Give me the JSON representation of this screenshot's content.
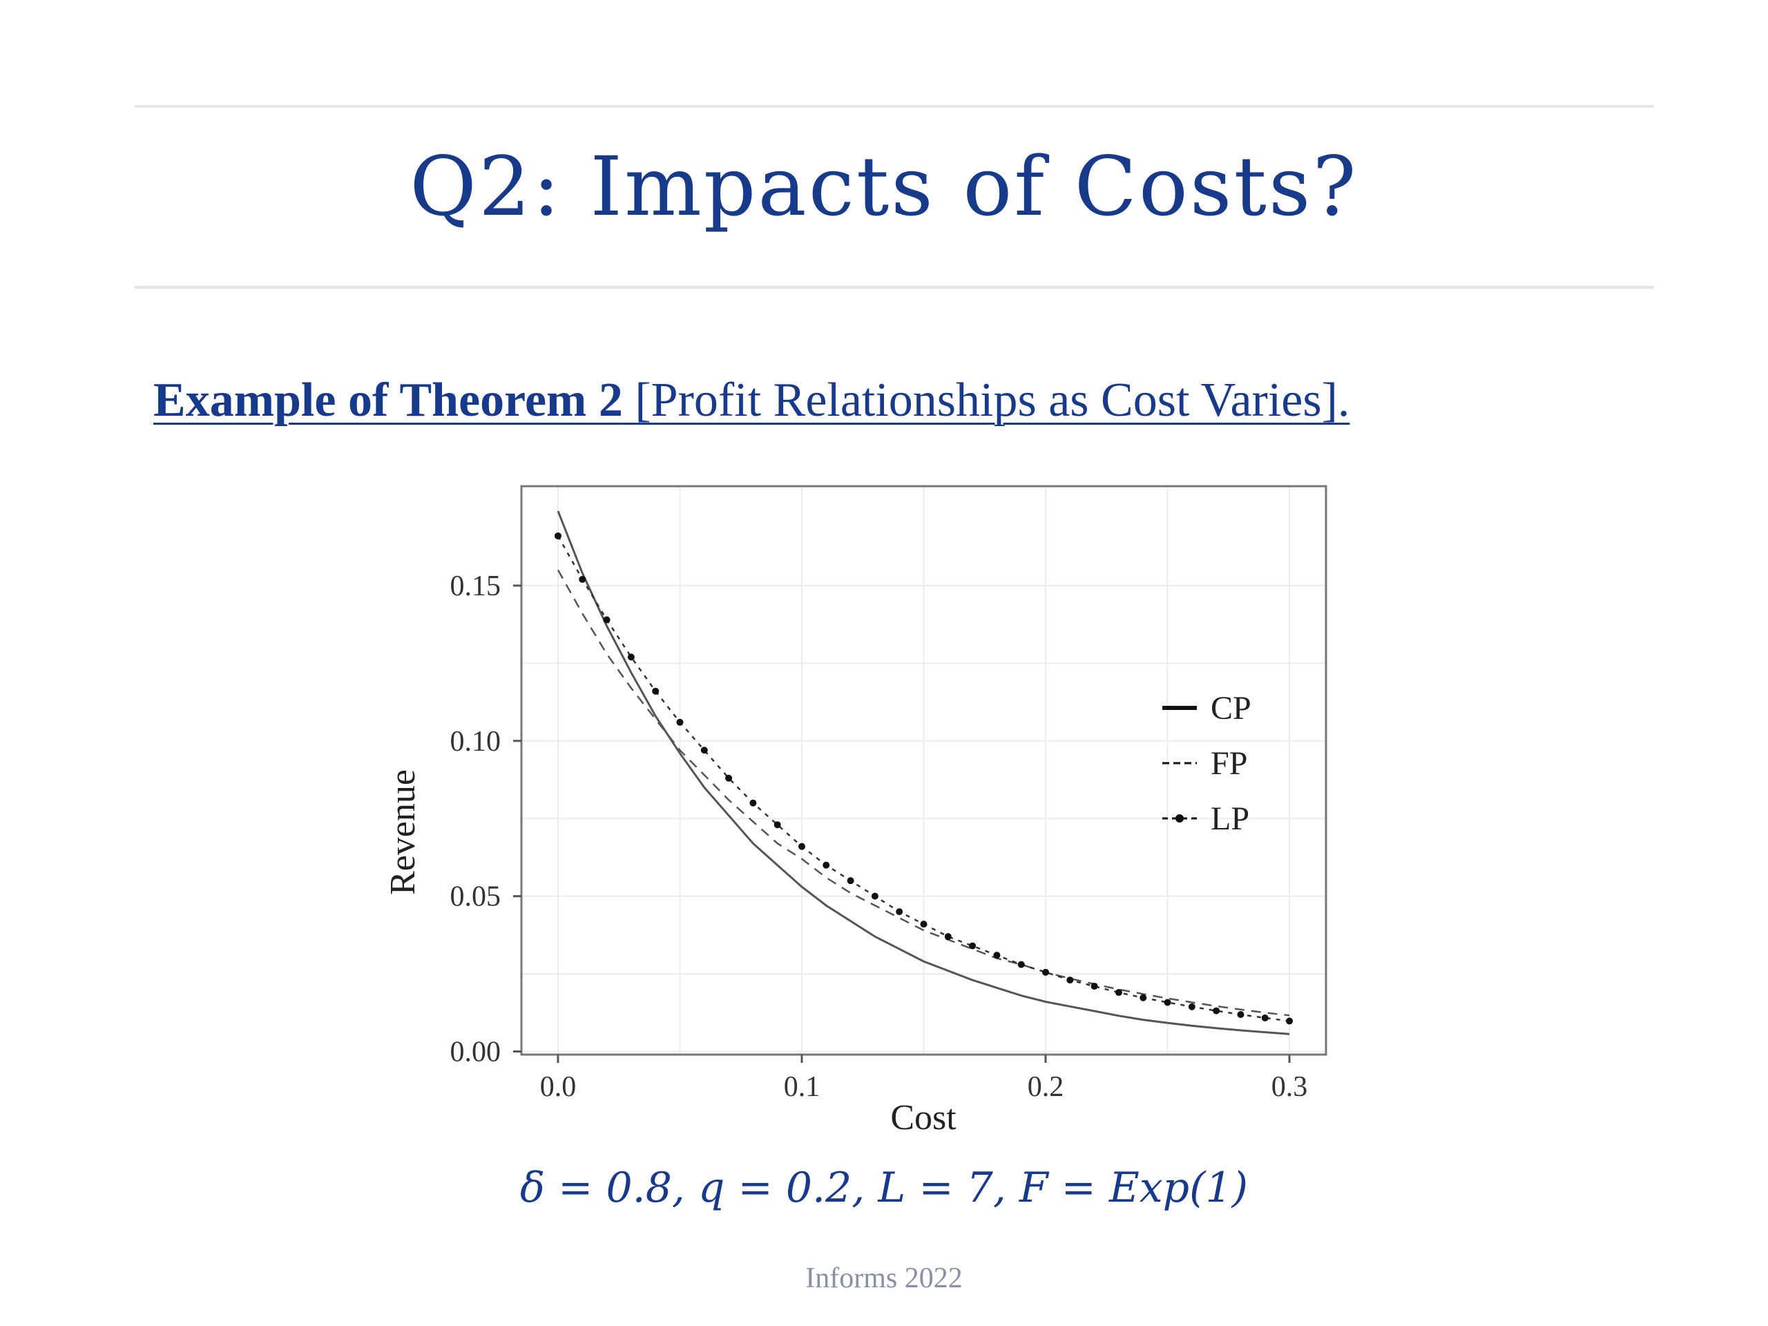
{
  "slide": {
    "title": "Q2: Impacts of Costs?",
    "subtitle_bold": "Example of Theorem 2",
    "subtitle_rest": " [Profit Relationships as Cost Varies].",
    "params": "δ = 0.8, q = 0.2, L = 7, F = Exp(1)",
    "footer": "Informs 2022"
  },
  "colors": {
    "title": "#173a8a",
    "footer": "#8a8fa8",
    "axis": "#555555",
    "gridline": "#ececec",
    "cp_line": "#555555",
    "fp_line": "#555555",
    "lp_line": "#333333"
  },
  "chart_data": {
    "type": "line",
    "title": "",
    "xlabel": "Cost",
    "ylabel": "Revenue",
    "xlim": [
      -0.015,
      0.315
    ],
    "ylim": [
      -0.001,
      0.182
    ],
    "grid": true,
    "legend_position": "right",
    "x_ticks": [
      {
        "value": 0.0,
        "label": "0.0"
      },
      {
        "value": 0.1,
        "label": "0.1"
      },
      {
        "value": 0.2,
        "label": "0.2"
      },
      {
        "value": 0.3,
        "label": "0.3"
      }
    ],
    "y_ticks": [
      {
        "value": 0.0,
        "label": "0.00"
      },
      {
        "value": 0.05,
        "label": "0.05"
      },
      {
        "value": 0.1,
        "label": "0.10"
      },
      {
        "value": 0.15,
        "label": "0.15"
      }
    ],
    "x": [
      0.0,
      0.01,
      0.02,
      0.03,
      0.04,
      0.05,
      0.06,
      0.07,
      0.08,
      0.09,
      0.1,
      0.11,
      0.12,
      0.13,
      0.14,
      0.15,
      0.16,
      0.17,
      0.18,
      0.19,
      0.2,
      0.21,
      0.22,
      0.23,
      0.24,
      0.25,
      0.26,
      0.27,
      0.28,
      0.29,
      0.3
    ],
    "series": [
      {
        "name": "CP",
        "style": "solid",
        "values": [
          0.174,
          0.154,
          0.137,
          0.122,
          0.108,
          0.096,
          0.085,
          0.076,
          0.067,
          0.06,
          0.053,
          0.047,
          0.042,
          0.037,
          0.033,
          0.029,
          0.026,
          0.023,
          0.0205,
          0.018,
          0.016,
          0.0145,
          0.013,
          0.0115,
          0.0102,
          0.0092,
          0.0083,
          0.0075,
          0.0068,
          0.0062,
          0.0056
        ]
      },
      {
        "name": "FP",
        "style": "dashed",
        "values": [
          0.155,
          0.141,
          0.128,
          0.117,
          0.107,
          0.097,
          0.089,
          0.081,
          0.074,
          0.067,
          0.062,
          0.056,
          0.051,
          0.047,
          0.043,
          0.039,
          0.036,
          0.033,
          0.03,
          0.028,
          0.0255,
          0.0235,
          0.0217,
          0.02,
          0.0185,
          0.0171,
          0.0158,
          0.0146,
          0.0135,
          0.0125,
          0.0116
        ]
      },
      {
        "name": "LP",
        "style": "dash-dot-markers",
        "values": [
          0.166,
          0.152,
          0.139,
          0.127,
          0.116,
          0.106,
          0.097,
          0.088,
          0.08,
          0.073,
          0.066,
          0.06,
          0.055,
          0.05,
          0.045,
          0.041,
          0.037,
          0.034,
          0.031,
          0.028,
          0.0255,
          0.023,
          0.021,
          0.019,
          0.0173,
          0.0158,
          0.0144,
          0.0131,
          0.0119,
          0.0108,
          0.0098
        ]
      }
    ]
  }
}
